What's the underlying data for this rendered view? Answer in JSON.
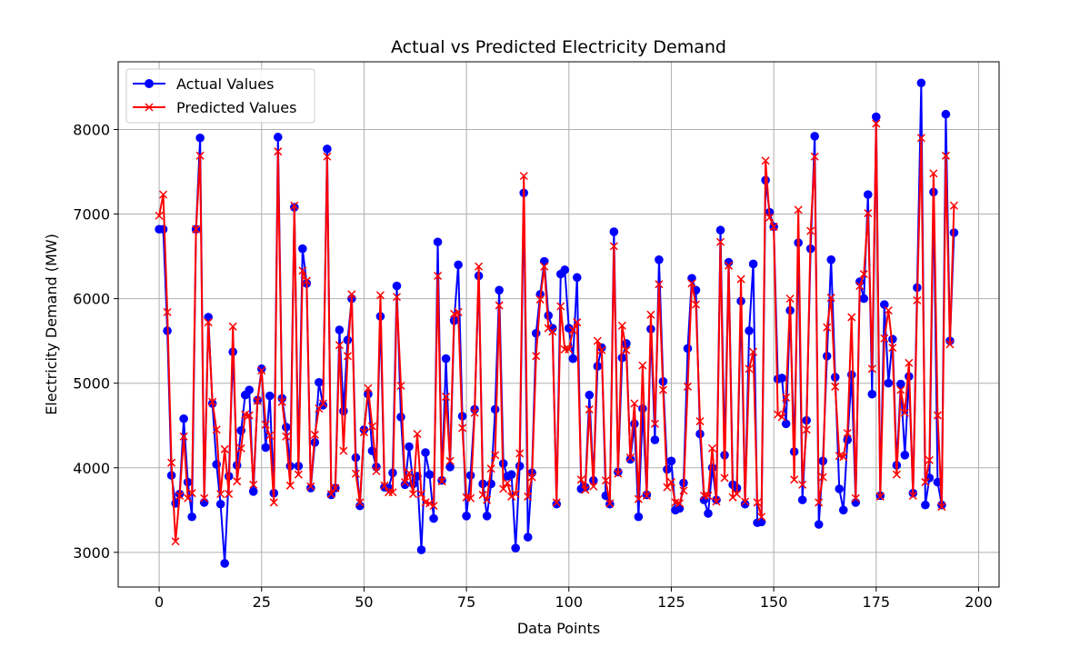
{
  "chart_data": {
    "type": "line",
    "title": "Actual vs Predicted Electricity Demand",
    "xlabel": "Data Points",
    "ylabel": "Electricity Demand (MW)",
    "xlim": [
      -10,
      205
    ],
    "ylim": [
      2590,
      8800
    ],
    "xticks": [
      0,
      25,
      50,
      75,
      100,
      125,
      150,
      175,
      200
    ],
    "yticks": [
      3000,
      4000,
      5000,
      6000,
      7000,
      8000
    ],
    "grid": true,
    "legend_position": "top-left",
    "series": [
      {
        "name": "Actual Values",
        "color": "#0000ff",
        "marker": "circle",
        "values": [
          6820,
          6820,
          5620,
          3910,
          3580,
          3690,
          4580,
          3830,
          3420,
          6820,
          7900,
          3590,
          5780,
          4760,
          4040,
          3570,
          2870,
          3900,
          5370,
          4030,
          4440,
          4860,
          4920,
          3720,
          4800,
          5170,
          4240,
          4850,
          3700,
          7910,
          4820,
          4480,
          4020,
          7080,
          4020,
          6590,
          6180,
          3760,
          4300,
          5010,
          4740,
          7770,
          3680,
          3760,
          5630,
          4670,
          5510,
          6000,
          4120,
          3550,
          4450,
          4870,
          4200,
          4010,
          5790,
          3770,
          3760,
          3940,
          6150,
          4600,
          3800,
          4250,
          3810,
          3900,
          3030,
          4180,
          3920,
          3400,
          6670,
          3850,
          5290,
          4010,
          5740,
          6400,
          4610,
          3430,
          3910,
          4690,
          6270,
          3810,
          3430,
          3810,
          4690,
          6100,
          4050,
          3900,
          3920,
          3050,
          4020,
          7250,
          3180,
          3940,
          5590,
          6050,
          6440,
          5800,
          5650,
          3570,
          6290,
          6340,
          5650,
          5290,
          6250,
          3750,
          3770,
          4860,
          3850,
          5200,
          5420,
          3670,
          3570,
          6790,
          3950,
          5300,
          5470,
          4100,
          4520,
          3420,
          4700,
          3680,
          5640,
          4330,
          6460,
          5020,
          3980,
          4080,
          3500,
          3520,
          3820,
          5410,
          6240,
          6100,
          4400,
          3620,
          3460,
          4000,
          3620,
          6810,
          4150,
          6430,
          3800,
          3760,
          5970,
          3570,
          5620,
          6410,
          3350,
          3360,
          7400,
          7020,
          6850,
          5050,
          5060,
          4520,
          5860,
          4190,
          6660,
          3620,
          4560,
          6590,
          7920,
          3330,
          4080,
          5320,
          6460,
          5070,
          3750,
          3500,
          4330,
          5100,
          3590,
          6200,
          6000,
          7230,
          4870,
          8150,
          3670,
          5930,
          5000,
          5520,
          4030,
          4990,
          4150,
          5080,
          3700,
          6130,
          8550,
          3560,
          3880,
          7260,
          3830,
          3560,
          8180,
          5500,
          6780
        ]
      },
      {
        "name": "Predicted Values",
        "color": "#ff0000",
        "marker": "x",
        "values": [
          6980,
          7230,
          5840,
          4060,
          3130,
          3670,
          4370,
          3640,
          3700,
          6820,
          7690,
          3640,
          5720,
          4780,
          4450,
          3690,
          4220,
          3690,
          5670,
          3840,
          4230,
          4630,
          4620,
          3800,
          4790,
          5150,
          4510,
          4380,
          3590,
          7740,
          4780,
          4370,
          3790,
          7100,
          3920,
          6330,
          6210,
          3780,
          4390,
          4700,
          4760,
          7680,
          3690,
          3760,
          5450,
          4200,
          5320,
          6050,
          3930,
          3590,
          4420,
          4940,
          4490,
          3960,
          6040,
          3790,
          3710,
          3710,
          6020,
          4970,
          3830,
          3940,
          3690,
          4400,
          3690,
          3590,
          3580,
          3550,
          6270,
          3840,
          4840,
          4080,
          5820,
          5840,
          4470,
          3650,
          3640,
          4650,
          6380,
          3680,
          3620,
          3990,
          4150,
          5920,
          3750,
          3820,
          3660,
          3690,
          4170,
          7450,
          3660,
          3890,
          5320,
          5990,
          6380,
          5650,
          5610,
          3590,
          5910,
          5400,
          5400,
          5630,
          5720,
          3860,
          3740,
          4690,
          3780,
          5500,
          5390,
          3850,
          3580,
          6620,
          3930,
          5680,
          5390,
          4120,
          4760,
          3630,
          5210,
          3670,
          5810,
          4520,
          6170,
          4920,
          3770,
          3830,
          3590,
          3580,
          3730,
          4960,
          6180,
          5930,
          4550,
          3670,
          3670,
          4230,
          3600,
          6670,
          3880,
          6390,
          3650,
          3690,
          6230,
          3600,
          5170,
          5370,
          3590,
          3420,
          7630,
          6960,
          6850,
          4630,
          4600,
          4830,
          6000,
          3860,
          7050,
          3800,
          4450,
          6800,
          7680,
          3590,
          3890,
          5660,
          6010,
          4960,
          4140,
          4130,
          4410,
          5780,
          3640,
          6150,
          6290,
          7010,
          5170,
          8070,
          3660,
          5530,
          5860,
          5420,
          3920,
          4920,
          4650,
          5240,
          3670,
          5980,
          7900,
          3830,
          4090,
          7480,
          4620,
          3540,
          7690,
          5460,
          7100
        ]
      }
    ]
  }
}
